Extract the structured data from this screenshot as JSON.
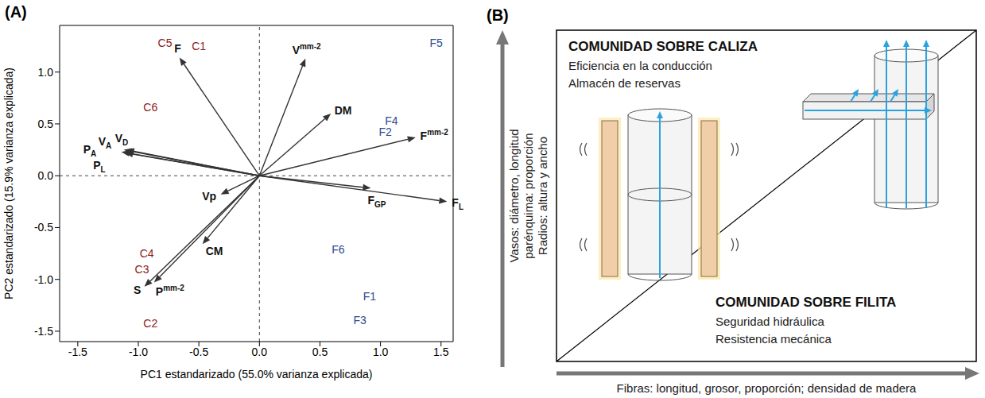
{
  "chart_data": {
    "type": "scatter",
    "panel": "(A)",
    "x_label": "PC1 estandarizado (55.0% varianza explicada)",
    "y_label": "PC2 estandarizado (15.9% varianza explicada)",
    "xlim": [
      -1.65,
      1.6
    ],
    "ylim": [
      -1.6,
      1.45
    ],
    "xticks": [
      -1.5,
      {
        "value": -1,
        "label": "-1.0"
      },
      -0.5,
      {
        "value": 0,
        "label": "0.0"
      },
      0.5,
      {
        "value": 1,
        "label": "1.0"
      },
      1.5
    ],
    "yticks": [
      -1.5,
      {
        "value": -1,
        "label": "-1.0"
      },
      -0.5,
      {
        "value": 0,
        "label": "0.0"
      },
      0.5,
      {
        "value": 1,
        "label": "1.0"
      }
    ],
    "origin": {
      "x": 0,
      "y": 0
    },
    "series": [
      {
        "color": "#8b1a1a",
        "points": [
          {
            "label": "C1",
            "x": -0.5,
            "y": 1.25
          },
          {
            "label": "C2",
            "x": -0.9,
            "y": -1.42
          },
          {
            "label": "C3",
            "x": -0.97,
            "y": -0.9
          },
          {
            "label": "C4",
            "x": -0.93,
            "y": -0.75
          },
          {
            "label": "C5",
            "x": -0.78,
            "y": 1.28
          },
          {
            "label": "C6",
            "x": -0.9,
            "y": 0.66
          }
        ]
      },
      {
        "color": "#2e4a8f",
        "points": [
          {
            "label": "F1",
            "x": 0.91,
            "y": -1.16
          },
          {
            "label": "F2",
            "x": 1.04,
            "y": 0.42
          },
          {
            "label": "F3",
            "x": 0.83,
            "y": -1.39
          },
          {
            "label": "F4",
            "x": 1.09,
            "y": 0.53
          },
          {
            "label": "F5",
            "x": 1.46,
            "y": 1.28
          },
          {
            "label": "F6",
            "x": 0.65,
            "y": -0.71
          }
        ]
      }
    ],
    "vectors": [
      {
        "label": "F",
        "x": -0.66,
        "y": 1.14
      },
      {
        "label": "V",
        "sup": "mm-2",
        "x": 0.38,
        "y": 1.13
      },
      {
        "label": "DM",
        "x": 0.59,
        "y": 0.6
      },
      {
        "label": "F",
        "sup": "mm-2",
        "x": 1.29,
        "y": 0.37
      },
      {
        "label": "F",
        "sub": "L",
        "x": 1.55,
        "y": -0.25
      },
      {
        "label": "F",
        "sub": "GP",
        "x": 0.92,
        "y": -0.12
      },
      {
        "label": "Vp",
        "x": -0.32,
        "y": -0.18
      },
      {
        "label": "CM",
        "x": -0.47,
        "y": -0.66
      },
      {
        "label": "P",
        "sup": "mm-2",
        "x": -0.87,
        "y": -1.03
      },
      {
        "label": "S",
        "x": -0.95,
        "y": -1.07
      },
      {
        "label": "P",
        "sub": "A",
        "x": -1.14,
        "y": 0.23
      },
      {
        "label": "V",
        "sub": "A",
        "x": -1.12,
        "y": 0.25
      },
      {
        "label": "V",
        "sub": "D",
        "x": -1.1,
        "y": 0.25
      },
      {
        "label": "P",
        "sub": "L",
        "x": -1.11,
        "y": 0.22
      }
    ]
  },
  "diagram": {
    "panel": "(B)",
    "y_axis_label": [
      "Vasos: diámetro, longitud",
      "parénquima: proporción",
      "Radios: altura y ancho"
    ],
    "x_axis_label": "Fibras: longitud, grosor, proporción; densidad de madera",
    "upper": {
      "title": "COMUNIDAD SOBRE CALIZA",
      "lines": [
        "Eficiencia en la conducción",
        "Almacén de reservas"
      ]
    },
    "lower": {
      "title": "COMUNIDAD SOBRE FILITA",
      "lines": [
        "Seguridad hidráulica",
        "Resistencia mecánica"
      ]
    }
  }
}
